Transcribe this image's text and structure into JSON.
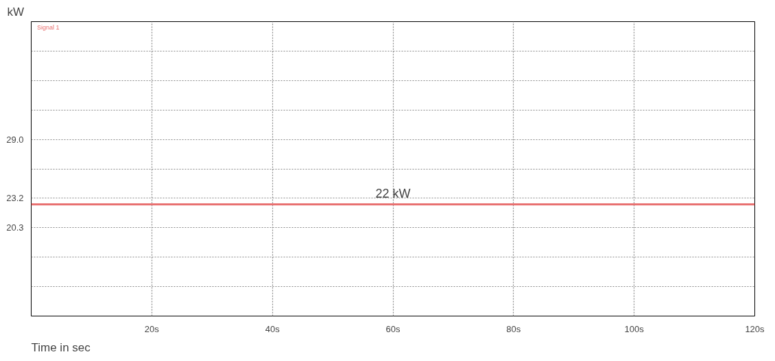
{
  "chart_data": {
    "type": "line",
    "xlabel": "Time in sec",
    "ylabel": "kW",
    "xlim": [
      0,
      120
    ],
    "ylim": [
      11.6,
      40.6
    ],
    "xticks": [
      {
        "value": 0,
        "label": null
      },
      {
        "value": 20,
        "label": "20s"
      },
      {
        "value": 40,
        "label": "40s"
      },
      {
        "value": 60,
        "label": "60s"
      },
      {
        "value": 80,
        "label": "80s"
      },
      {
        "value": 100,
        "label": "100s"
      },
      {
        "value": 120,
        "label": "120s"
      }
    ],
    "yticks": [
      {
        "value": 14.5,
        "label": null
      },
      {
        "value": 17.4,
        "label": null
      },
      {
        "value": 20.3,
        "label": "20.3"
      },
      {
        "value": 23.2,
        "label": "23.2"
      },
      {
        "value": 26.1,
        "label": null
      },
      {
        "value": 29.0,
        "label": "29.0"
      },
      {
        "value": 31.9,
        "label": null
      },
      {
        "value": 34.8,
        "label": null
      },
      {
        "value": 37.7,
        "label": null
      }
    ],
    "series": [
      {
        "name": "Signal 1",
        "color": "#e87070",
        "x": [
          0,
          120
        ],
        "values": [
          22.6,
          22.6
        ]
      }
    ],
    "annotations": [
      {
        "text": "22 kW",
        "x": 60,
        "y": 22.6
      }
    ],
    "legend": "top left",
    "grid": true,
    "line_style": "solid",
    "marker": "none"
  }
}
